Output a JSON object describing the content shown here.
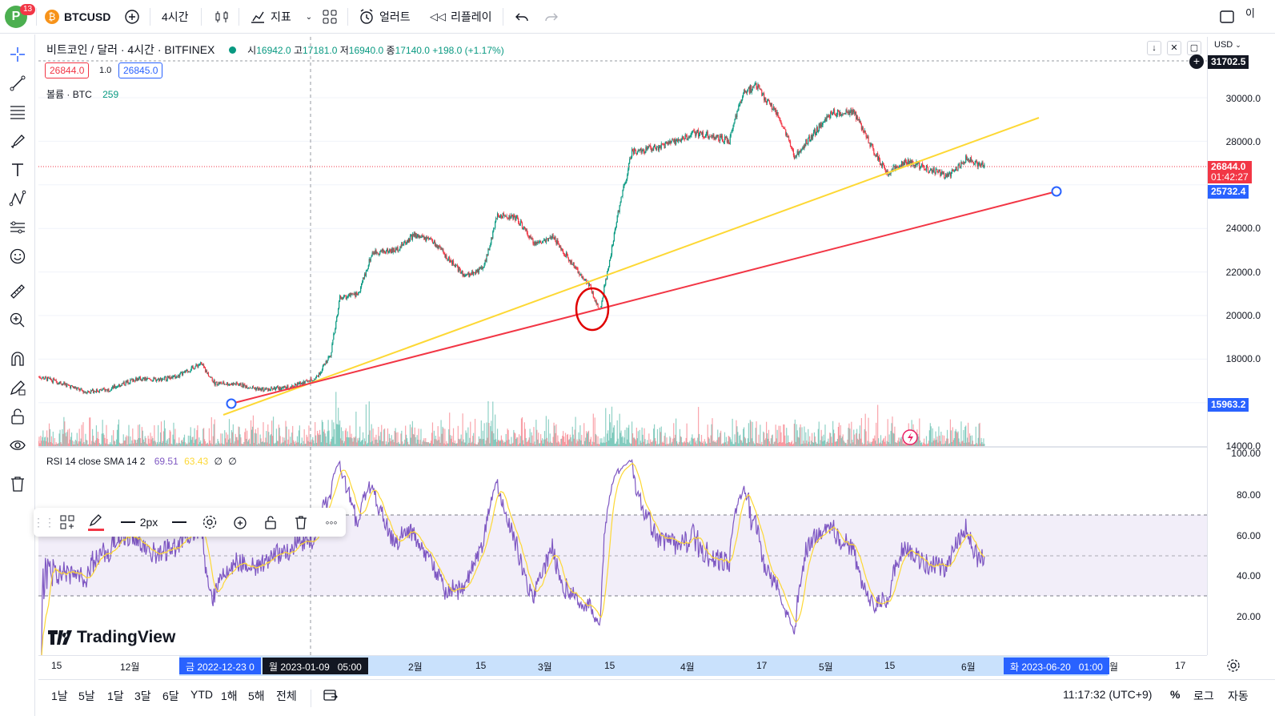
{
  "topbar": {
    "avatar_letter": "P",
    "notif_count": "13",
    "symbol": "BTCUSD",
    "interval": "4시간",
    "indicators": "지표",
    "alerts": "얼러트",
    "replay": "리플레이",
    "right_partial": "이"
  },
  "legend": {
    "title": "비트코인 / 달러 · 4시간 · BITFINEX",
    "o_label": "시",
    "o_value": "16942.0",
    "h_label": "고",
    "h_value": "17181.0",
    "l_label": "저",
    "l_value": "16940.0",
    "c_label": "종",
    "c_value": "17140.0",
    "change": "+198.0 (+1.17%)",
    "bid": "26844.0",
    "spread": "1.0",
    "ask": "26845.0",
    "volume_label": "볼륨 · BTC",
    "volume_value": "259",
    "rsi_label": "RSI 14 close SMA 14 2",
    "rsi_value": "69.51",
    "rsi_sma": "63.43",
    "rsi_extra1": "∅",
    "rsi_extra2": "∅"
  },
  "price_scale": {
    "currency": "USD",
    "labels": [
      "30000.0",
      "28000.0",
      "24000.0",
      "22000.0",
      "20000.0",
      "18000.0",
      "14000.0"
    ],
    "top_tag": "31702.5",
    "last_price": "26844.0",
    "countdown": "01:42:27",
    "line_tag": "25732.4",
    "low_tag": "15963.2",
    "rsi_labels": [
      "100.00",
      "80.00",
      "60.00",
      "40.00",
      "20.00"
    ]
  },
  "time_axis": {
    "labels": [
      "15",
      "12월",
      "2월",
      "15",
      "3월",
      "15",
      "4월",
      "17",
      "5월",
      "15",
      "6월",
      "17"
    ],
    "range_start": "금 2022-12-23",
    "range_start_suffix": "0",
    "crosshair": "월 2023-01-09   05:00",
    "range_end": "화 2023-06-20   01:00",
    "range_end_suffix": "월"
  },
  "bottombar": {
    "ranges": [
      "1날",
      "5날",
      "1달",
      "3달",
      "6달",
      "YTD",
      "1해",
      "5해",
      "전체"
    ],
    "clock": "11:17:32 (UTC+9)",
    "percent": "%",
    "log": "로그",
    "auto": "자동"
  },
  "drawing_toolbar": {
    "width_label": "2px"
  },
  "watermark": "TradingView",
  "colors": {
    "up": "#089981",
    "down": "#f23645",
    "yellow_line": "#fdd835",
    "red_line": "#f23645",
    "accent": "#2962ff",
    "rsi_line": "#7e57c2",
    "rsi_sma": "#fdd835"
  },
  "chart_data": {
    "type": "candlestick",
    "symbol": "BTCUSD",
    "interval": "4h",
    "ylim": [
      14000,
      31702.5
    ],
    "x_range": [
      "2022-11-10",
      "2023-07-20"
    ],
    "close_series": [
      [
        "2022-11-10",
        17200
      ],
      [
        "2022-11-15",
        16900
      ],
      [
        "2022-11-20",
        16500
      ],
      [
        "2022-11-25",
        16600
      ],
      [
        "2022-12-01",
        17100
      ],
      [
        "2022-12-05",
        17050
      ],
      [
        "2022-12-10",
        17200
      ],
      [
        "2022-12-15",
        17800
      ],
      [
        "2022-12-18",
        16900
      ],
      [
        "2022-12-23",
        16850
      ],
      [
        "2022-12-28",
        16600
      ],
      [
        "2023-01-03",
        16700
      ],
      [
        "2023-01-09",
        17150
      ],
      [
        "2023-01-12",
        18200
      ],
      [
        "2023-01-14",
        20800
      ],
      [
        "2023-01-18",
        21000
      ],
      [
        "2023-01-21",
        22900
      ],
      [
        "2023-01-26",
        23000
      ],
      [
        "2023-01-30",
        23700
      ],
      [
        "2023-02-03",
        23400
      ],
      [
        "2023-02-10",
        21800
      ],
      [
        "2023-02-14",
        22200
      ],
      [
        "2023-02-17",
        24600
      ],
      [
        "2023-02-21",
        24500
      ],
      [
        "2023-02-25",
        23300
      ],
      [
        "2023-03-01",
        23600
      ],
      [
        "2023-03-05",
        22400
      ],
      [
        "2023-03-09",
        21300
      ],
      [
        "2023-03-11",
        20200
      ],
      [
        "2023-03-13",
        22300
      ],
      [
        "2023-03-15",
        24700
      ],
      [
        "2023-03-18",
        27500
      ],
      [
        "2023-03-25",
        27800
      ],
      [
        "2023-04-01",
        28400
      ],
      [
        "2023-04-08",
        28000
      ],
      [
        "2023-04-11",
        30300
      ],
      [
        "2023-04-14",
        30500
      ],
      [
        "2023-04-19",
        29000
      ],
      [
        "2023-04-22",
        27300
      ],
      [
        "2023-04-26",
        28300
      ],
      [
        "2023-04-30",
        29300
      ],
      [
        "2023-05-05",
        29300
      ],
      [
        "2023-05-08",
        28000
      ],
      [
        "2023-05-12",
        26500
      ],
      [
        "2023-05-16",
        27100
      ],
      [
        "2023-05-20",
        26800
      ],
      [
        "2023-05-25",
        26400
      ],
      [
        "2023-05-29",
        27200
      ],
      [
        "2023-06-02",
        26844
      ]
    ],
    "rsi": {
      "period": 14,
      "sma": 14,
      "last": 69.51,
      "sma_last": 63.43,
      "bands": [
        70,
        50,
        30
      ],
      "ylim": [
        0,
        100
      ]
    },
    "trendlines": [
      {
        "color": "yellow",
        "from": [
          "2022-12-24",
          15500
        ],
        "to": [
          "2023-06-20",
          29000
        ]
      },
      {
        "color": "red",
        "from": [
          "2022-12-24",
          15963.2
        ],
        "to": [
          "2023-06-20",
          25732.4
        ]
      }
    ],
    "marker": {
      "type": "circle",
      "x": "2023-03-11",
      "y": 20300
    }
  }
}
